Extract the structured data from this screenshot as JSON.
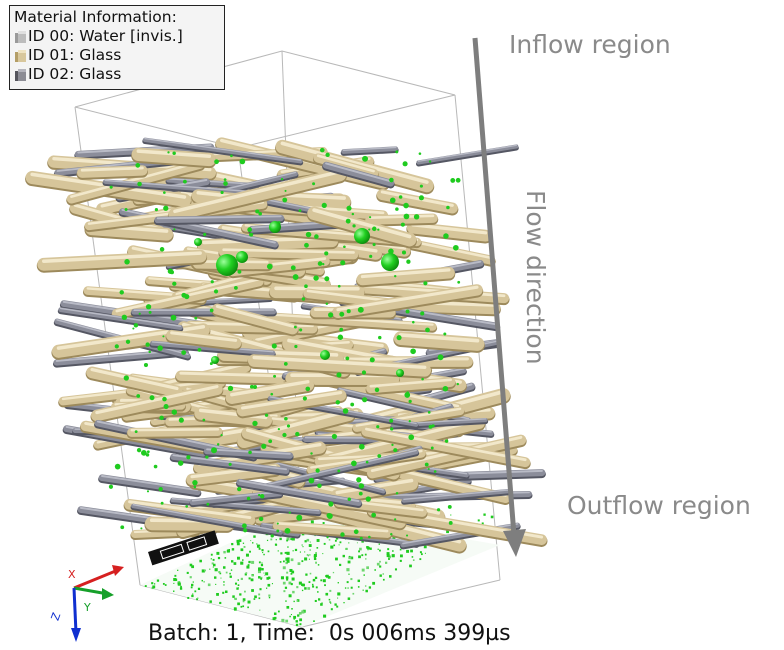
{
  "legend": {
    "title": "Material Information:",
    "items": [
      {
        "label": "ID 00: Water [invis.]",
        "color": "#bdbdbd"
      },
      {
        "label": "ID 01: Glass",
        "color": "#d8c79c"
      },
      {
        "label": "ID 02: Glass",
        "color": "#8c8c94"
      }
    ]
  },
  "annotations": {
    "inflow": "Inflow region",
    "flow_direction": "Flow direction",
    "outflow": "Outflow region"
  },
  "status": {
    "batch_time": "Batch: 1, Time:  0s 006ms 399µs"
  },
  "axes": {
    "x_label": "X",
    "y_label": "Y",
    "z_label": "Z",
    "x_color": "#d62020",
    "y_color": "#16a02a",
    "z_color": "#1030d0"
  },
  "colors": {
    "fiber_tan": "#d6c59a",
    "fiber_gray": "#8b8d9a",
    "particle_green": "#1fcb1f",
    "arrow_gray": "#7e7e7e"
  }
}
